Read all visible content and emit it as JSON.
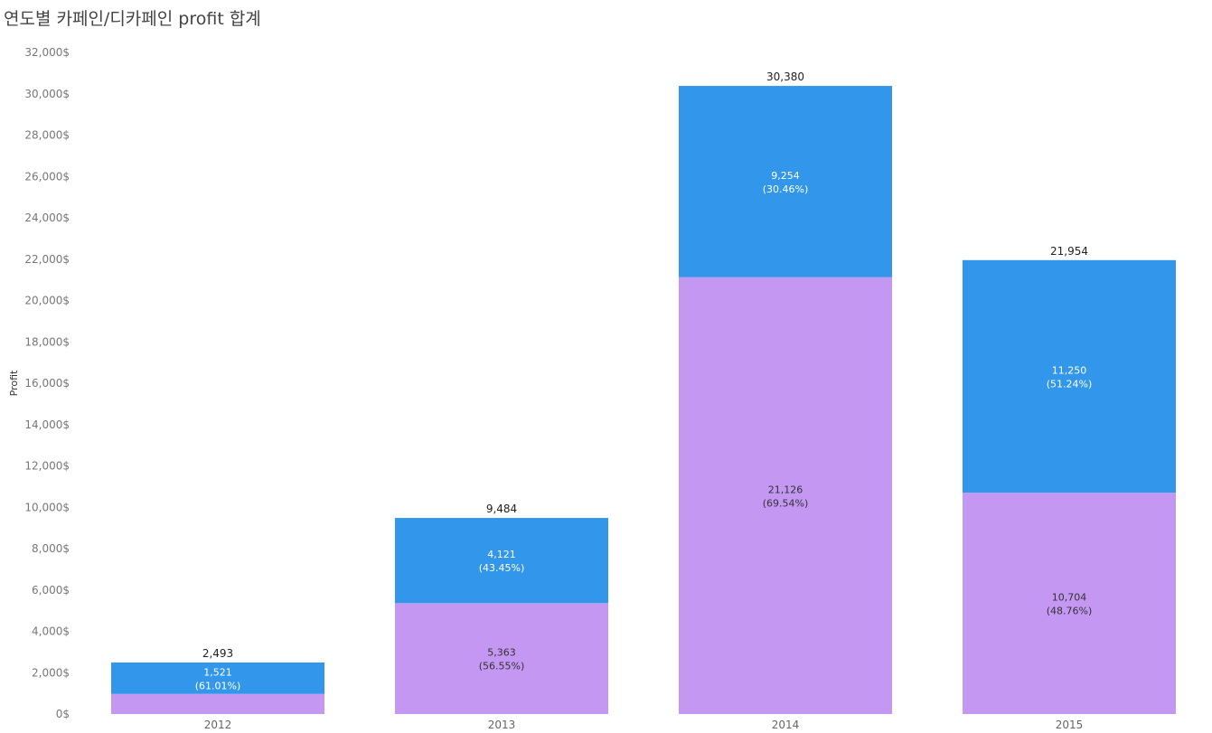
{
  "title": "연도별 카페인/디카페인 profit 합계",
  "colors": {
    "lower_segment": "#c397f2",
    "upper_segment": "#3296ea",
    "lower_label": "#333333",
    "upper_label": "#ffffff"
  },
  "chart_data": {
    "type": "bar",
    "stacked": true,
    "title": "연도별 카페인/디카페인 profit 합계",
    "xlabel": "",
    "ylabel": "Profit",
    "ylim": [
      0,
      32000
    ],
    "yticks": [
      0,
      2000,
      4000,
      6000,
      8000,
      10000,
      12000,
      14000,
      16000,
      18000,
      20000,
      22000,
      24000,
      26000,
      28000,
      30000,
      32000
    ],
    "ytick_labels": [
      "0$",
      "2,000$",
      "4,000$",
      "6,000$",
      "8,000$",
      "10,000$",
      "12,000$",
      "14,000$",
      "16,000$",
      "18,000$",
      "20,000$",
      "22,000$",
      "24,000$",
      "26,000$",
      "28,000$",
      "30,000$",
      "32,000$"
    ],
    "categories": [
      "2012",
      "2013",
      "2014",
      "2015"
    ],
    "series": [
      {
        "values": [
          972,
          5363,
          21126,
          10704
        ],
        "labels": [
          "",
          "5,363",
          "21,126",
          "10,704"
        ],
        "pct_labels": [
          "",
          "(56.55%)",
          "(69.54%)",
          "(48.76%)"
        ]
      },
      {
        "values": [
          1521,
          4121,
          9254,
          11250
        ],
        "labels": [
          "1,521",
          "4,121",
          "9,254",
          "11,250"
        ],
        "pct_labels": [
          "(61.01%)",
          "(43.45%)",
          "(30.46%)",
          "(51.24%)"
        ]
      }
    ],
    "totals": [
      2493,
      9484,
      30380,
      21954
    ],
    "total_labels": [
      "2,493",
      "9,484",
      "30,380",
      "21,954"
    ],
    "grid": false,
    "legend": "none"
  }
}
